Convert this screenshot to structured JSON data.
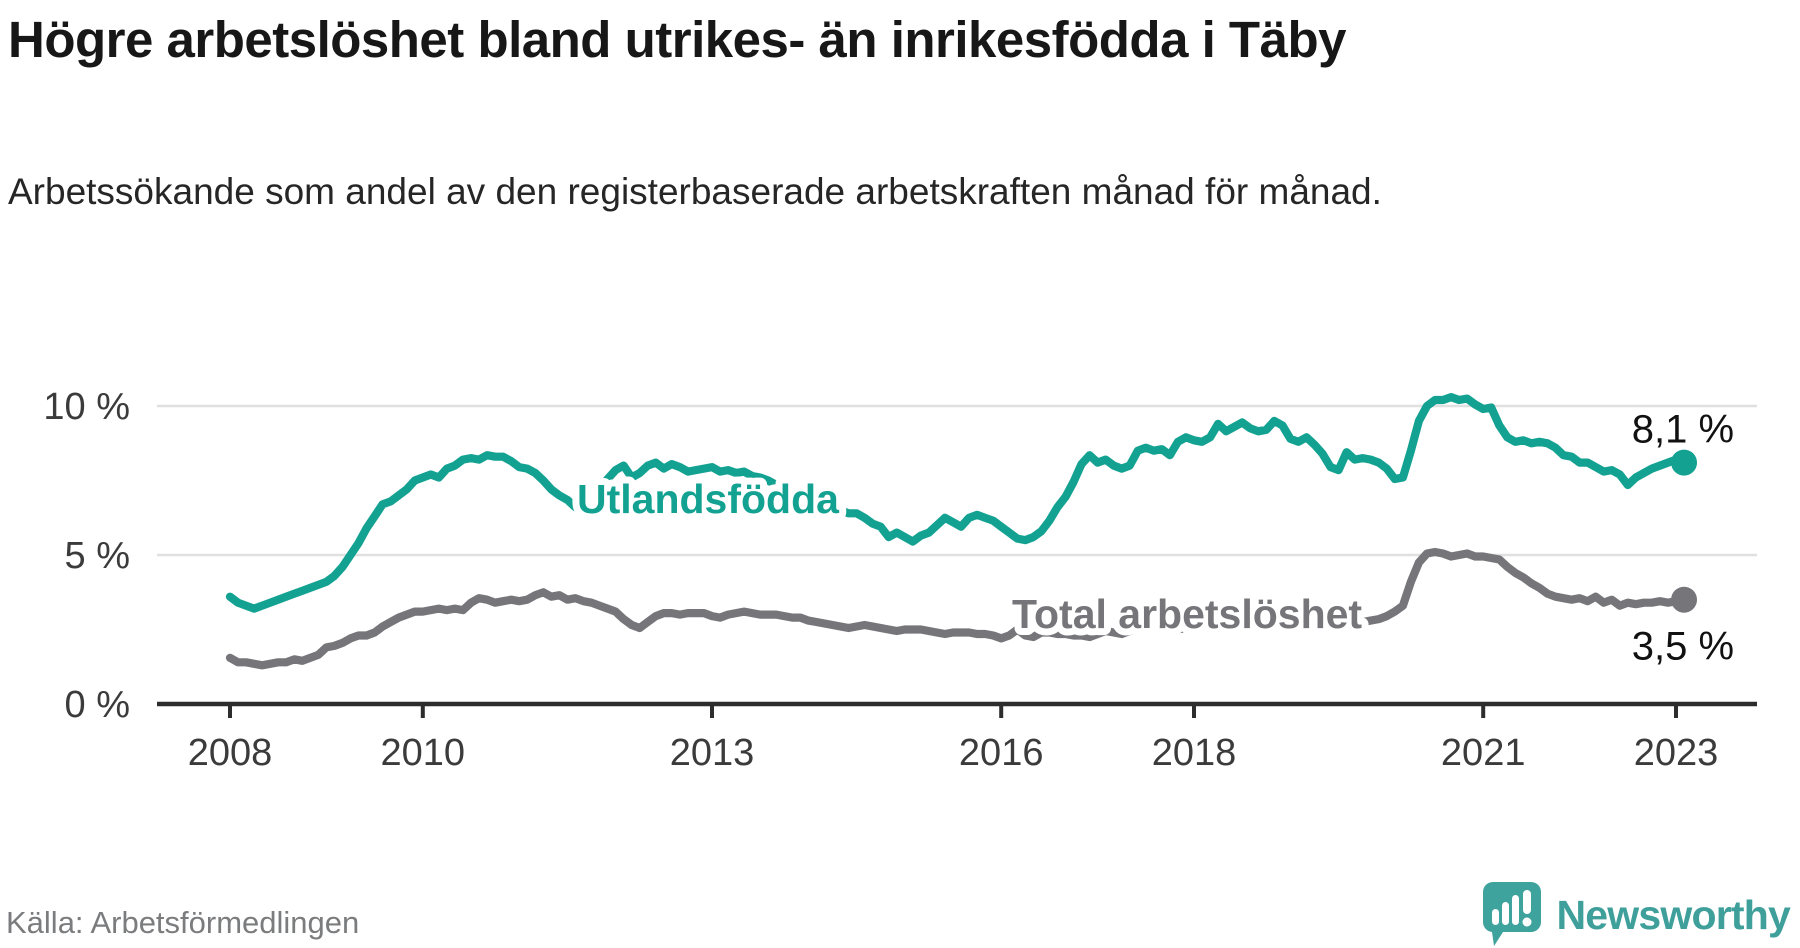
{
  "footer": {
    "brand": "Newsworthy",
    "brand_icon": "newsworthy-speech-bubble-chart-icon",
    "brand_color": "#3f9f9a"
  },
  "colors": {
    "foreign_born_line": "#13a291",
    "total_line": "#76767a",
    "axis": "#2d2d2d",
    "grid": "#e0e0e0",
    "tick_text": "#3b3b3b",
    "end_label_text": "#111111",
    "source_text": "#7b7c7e"
  },
  "chart_data": {
    "type": "line",
    "title": "Högre arbetslöshet bland utrikes- än inrikesfödda i Täby",
    "subtitle": "Arbetssökande som andel av den registerbaserade arbetskraften månad för månad.",
    "source": "Källa: Arbetsförmedlingen",
    "grid": "horizontal",
    "legend_position": "inline-labels",
    "x_start": {
      "year": 2008,
      "month": 1
    },
    "x_end": {
      "year": 2023,
      "month": 2
    },
    "frequency": "monthly",
    "x_tick_years": [
      "2008",
      "2010",
      "2013",
      "2016",
      "2018",
      "2021",
      "2023"
    ],
    "y_ticks": [
      {
        "value": 0,
        "label": "0 %"
      },
      {
        "value": 5,
        "label": "5 %"
      },
      {
        "value": 10,
        "label": "10 %"
      }
    ],
    "ylim": [
      0,
      10.6
    ],
    "series": [
      {
        "name": "Total arbetslöshet",
        "color": "#76767a",
        "end_label": "3,5 %",
        "end_value": 3.5,
        "values": [
          1.55,
          1.4,
          1.4,
          1.35,
          1.3,
          1.35,
          1.4,
          1.4,
          1.5,
          1.45,
          1.55,
          1.65,
          1.9,
          1.95,
          2.05,
          2.2,
          2.3,
          2.3,
          2.4,
          2.6,
          2.75,
          2.9,
          3.0,
          3.1,
          3.1,
          3.15,
          3.2,
          3.15,
          3.2,
          3.15,
          3.4,
          3.55,
          3.5,
          3.4,
          3.45,
          3.5,
          3.45,
          3.5,
          3.65,
          3.75,
          3.6,
          3.65,
          3.5,
          3.55,
          3.45,
          3.4,
          3.3,
          3.2,
          3.1,
          2.85,
          2.65,
          2.55,
          2.75,
          2.95,
          3.05,
          3.05,
          3.0,
          3.05,
          3.05,
          3.05,
          2.95,
          2.9,
          3.0,
          3.05,
          3.1,
          3.05,
          3.0,
          3.0,
          3.0,
          2.95,
          2.9,
          2.9,
          2.8,
          2.75,
          2.7,
          2.65,
          2.6,
          2.55,
          2.6,
          2.65,
          2.6,
          2.55,
          2.5,
          2.45,
          2.5,
          2.5,
          2.5,
          2.45,
          2.4,
          2.35,
          2.4,
          2.4,
          2.4,
          2.35,
          2.35,
          2.3,
          2.2,
          2.3,
          2.5,
          2.3,
          2.25,
          2.4,
          2.4,
          2.35,
          2.35,
          2.3,
          2.3,
          2.25,
          2.35,
          2.45,
          2.4,
          2.35,
          2.45,
          2.55,
          2.6,
          2.55,
          2.5,
          2.55,
          2.5,
          2.55,
          2.6,
          2.55,
          2.6,
          2.65,
          2.6,
          2.55,
          2.6,
          2.65,
          2.6,
          2.65,
          2.7,
          2.65,
          2.7,
          2.65,
          2.7,
          2.75,
          2.7,
          2.65,
          2.7,
          2.75,
          2.7,
          2.75,
          2.8,
          2.85,
          2.95,
          3.1,
          3.3,
          4.1,
          4.75,
          5.05,
          5.1,
          5.05,
          4.95,
          5.0,
          5.05,
          4.95,
          4.95,
          4.9,
          4.85,
          4.6,
          4.4,
          4.25,
          4.05,
          3.9,
          3.7,
          3.6,
          3.55,
          3.5,
          3.55,
          3.45,
          3.6,
          3.4,
          3.5,
          3.3,
          3.4,
          3.35,
          3.4,
          3.4,
          3.45,
          3.4,
          3.45,
          3.5
        ]
      },
      {
        "name": "Utlandsfödda",
        "color": "#13a291",
        "end_label": "8,1 %",
        "end_value": 8.1,
        "values": [
          3.6,
          3.4,
          3.3,
          3.2,
          3.3,
          3.4,
          3.5,
          3.6,
          3.7,
          3.8,
          3.9,
          4.0,
          4.1,
          4.3,
          4.6,
          5.0,
          5.4,
          5.9,
          6.3,
          6.7,
          6.8,
          7.0,
          7.2,
          7.5,
          7.6,
          7.7,
          7.6,
          7.9,
          8.0,
          8.2,
          8.25,
          8.2,
          8.35,
          8.3,
          8.3,
          8.15,
          7.95,
          7.9,
          7.75,
          7.5,
          7.2,
          7.0,
          6.85,
          6.6,
          6.7,
          6.9,
          7.2,
          7.55,
          7.85,
          8.0,
          7.6,
          7.75,
          8.0,
          8.1,
          7.9,
          8.05,
          7.95,
          7.8,
          7.85,
          7.9,
          7.95,
          7.8,
          7.85,
          7.75,
          7.8,
          7.65,
          7.6,
          7.5,
          7.35,
          7.2,
          7.05,
          6.9,
          6.8,
          6.65,
          6.75,
          6.6,
          6.5,
          6.4,
          6.4,
          6.25,
          6.05,
          5.95,
          5.6,
          5.75,
          5.6,
          5.45,
          5.65,
          5.75,
          6.0,
          6.25,
          6.1,
          5.95,
          6.25,
          6.35,
          6.25,
          6.15,
          5.95,
          5.75,
          5.55,
          5.5,
          5.6,
          5.8,
          6.15,
          6.6,
          6.95,
          7.45,
          8.05,
          8.35,
          8.1,
          8.2,
          8.0,
          7.9,
          8.0,
          8.5,
          8.6,
          8.5,
          8.55,
          8.35,
          8.8,
          8.95,
          8.85,
          8.8,
          8.95,
          9.4,
          9.15,
          9.3,
          9.45,
          9.25,
          9.15,
          9.2,
          9.5,
          9.35,
          8.9,
          8.8,
          8.95,
          8.7,
          8.4,
          7.95,
          7.85,
          8.45,
          8.2,
          8.25,
          8.2,
          8.1,
          7.9,
          7.55,
          7.6,
          8.5,
          9.5,
          10.0,
          10.2,
          10.2,
          10.3,
          10.2,
          10.25,
          10.05,
          9.9,
          9.95,
          9.35,
          8.95,
          8.8,
          8.85,
          8.75,
          8.8,
          8.75,
          8.6,
          8.35,
          8.3,
          8.1,
          8.1,
          7.95,
          7.8,
          7.85,
          7.7,
          7.35,
          7.6,
          7.75,
          7.9,
          8.0,
          8.1,
          8.2,
          8.1
        ]
      }
    ]
  }
}
